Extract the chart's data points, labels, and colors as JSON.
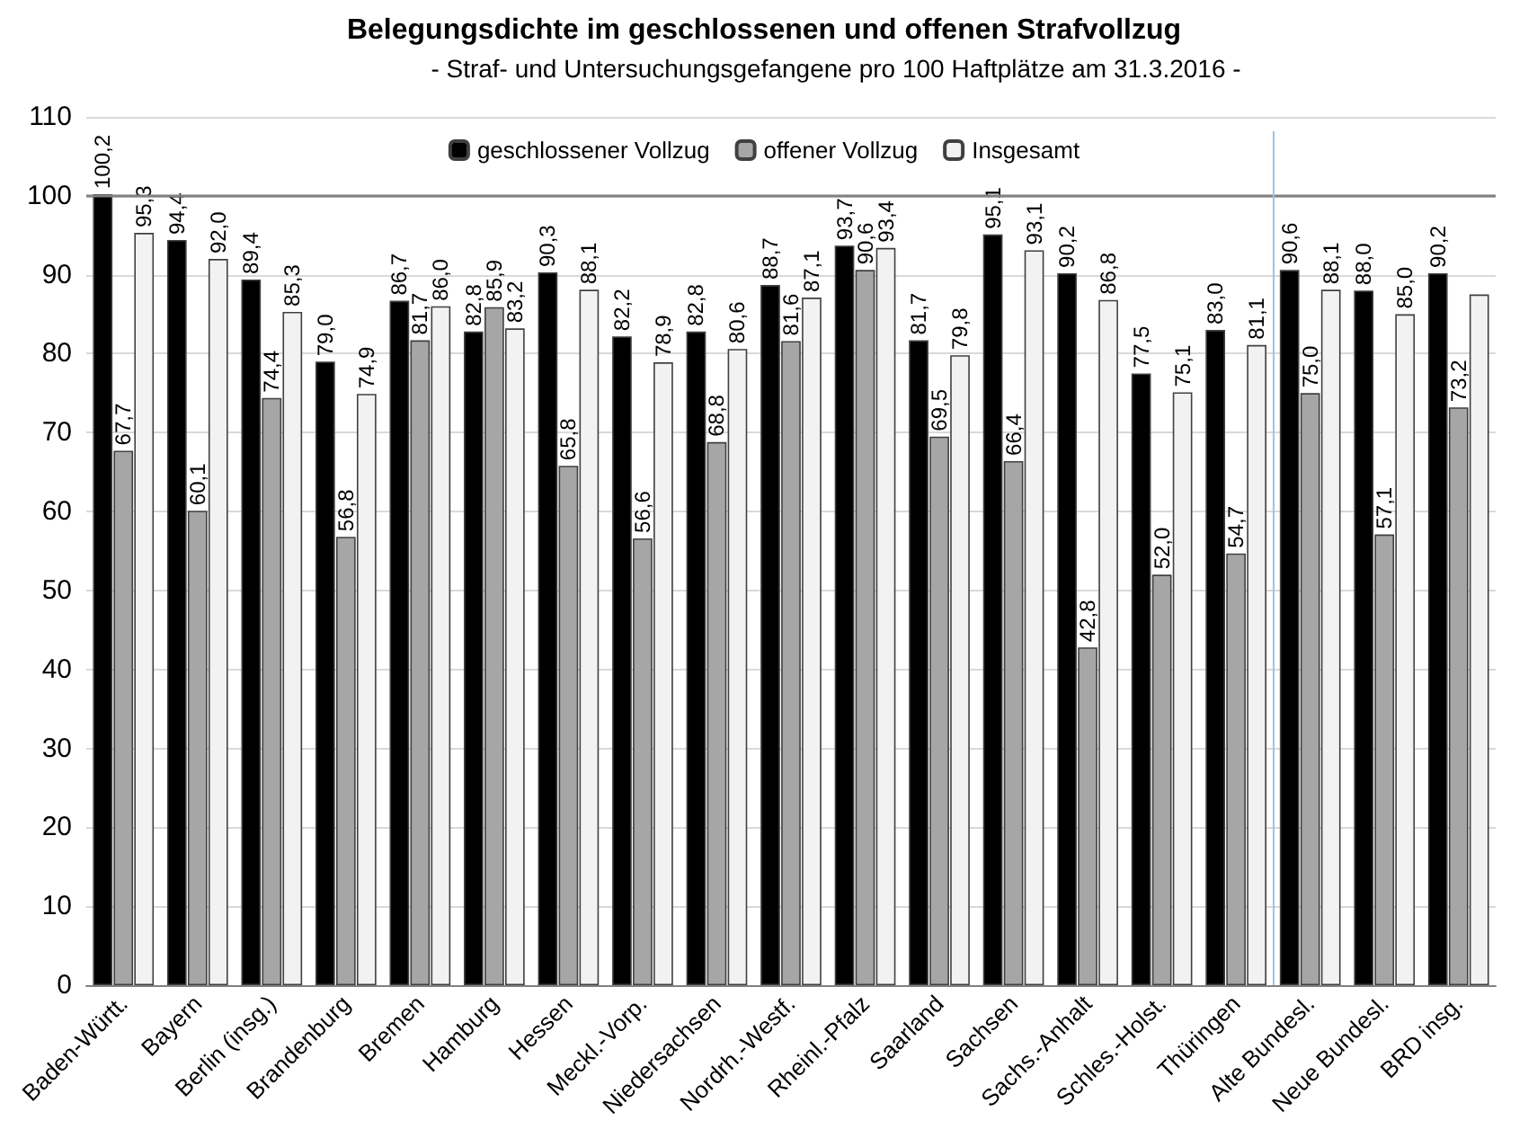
{
  "chart_data": {
    "type": "bar",
    "title": "Belegungsdichte im geschlossenen und offenen Strafvollzug",
    "subtitle": "- Straf- und Untersuchungsgefangene pro 100 Haftplätze am 31.3.2016 -",
    "categories": [
      "Baden-Württ.",
      "Bayern",
      "Berlin (insg.)",
      "Brandenburg",
      "Bremen",
      "Hamburg",
      "Hessen",
      "Meckl.-Vorp.",
      "Niedersachsen",
      "Nordrh.-Westf.",
      "Rheinl.-Pfalz",
      "Saarland",
      "Sachsen",
      "Sachs.-Anhalt",
      "Schles.-Holst.",
      "Thüringen",
      "Alte Bundesl.",
      "Neue Bundesl.",
      "BRD insg."
    ],
    "series": [
      {
        "name": "geschlossener Vollzug",
        "color": "#000000",
        "values": [
          100.2,
          94.4,
          89.4,
          79.0,
          86.7,
          82.8,
          90.3,
          82.2,
          82.8,
          88.7,
          93.7,
          81.7,
          95.1,
          90.2,
          77.5,
          83.0,
          90.6,
          88.0,
          90.2
        ],
        "value_labels": [
          "100,2",
          "94,4",
          "89,4",
          "79,0",
          "86,7",
          "82,8",
          "90,3",
          "82,2",
          "82,8",
          "88,7",
          "93,7",
          "81,7",
          "95,1",
          "90,2",
          "77,5",
          "83,0",
          "90,6",
          "88,0",
          "90,2"
        ]
      },
      {
        "name": "offener Vollzug",
        "color": "#a6a6a6",
        "values": [
          67.7,
          60.1,
          74.4,
          56.8,
          81.7,
          85.9,
          65.8,
          56.6,
          68.8,
          81.6,
          90.6,
          69.5,
          66.4,
          42.8,
          52.0,
          54.7,
          75.0,
          57.1,
          73.2
        ],
        "value_labels": [
          "67,7",
          "60,1",
          "74,4",
          "56,8",
          "81,7",
          "85,9",
          "65,8",
          "56,6",
          "68,8",
          "81,6",
          "90,6",
          "69,5",
          "66,4",
          "42,8",
          "52,0",
          "54,7",
          "75,0",
          "57,1",
          "73,2"
        ]
      },
      {
        "name": "Insgesamt",
        "color": "#f2f2f2",
        "values": [
          95.3,
          92.0,
          85.3,
          74.9,
          86.0,
          83.2,
          88.1,
          78.9,
          80.6,
          87.1,
          93.4,
          79.8,
          93.1,
          86.8,
          75.1,
          81.1,
          88.1,
          85.0,
          87.5
        ],
        "value_labels": [
          "95,3",
          "92,0",
          "85,3",
          "74,9",
          "86,0",
          "83,2",
          "88,1",
          "78,9",
          "80,6",
          "87,1",
          "93,4",
          "79,8",
          "93,1",
          "86,8",
          "75,1",
          "81,1",
          "88,1",
          "85,0",
          null
        ]
      }
    ],
    "ylim": [
      0,
      110
    ],
    "yticks": [
      0,
      10,
      20,
      30,
      40,
      50,
      60,
      70,
      80,
      90,
      100,
      110
    ],
    "grid": "y",
    "legend": "top",
    "ref_lines": [
      {
        "axis": "y",
        "value": 100,
        "color": "#808080"
      },
      {
        "axis": "x",
        "value": "Alte Bundesl.",
        "color": "#9dc3e6"
      }
    ]
  }
}
